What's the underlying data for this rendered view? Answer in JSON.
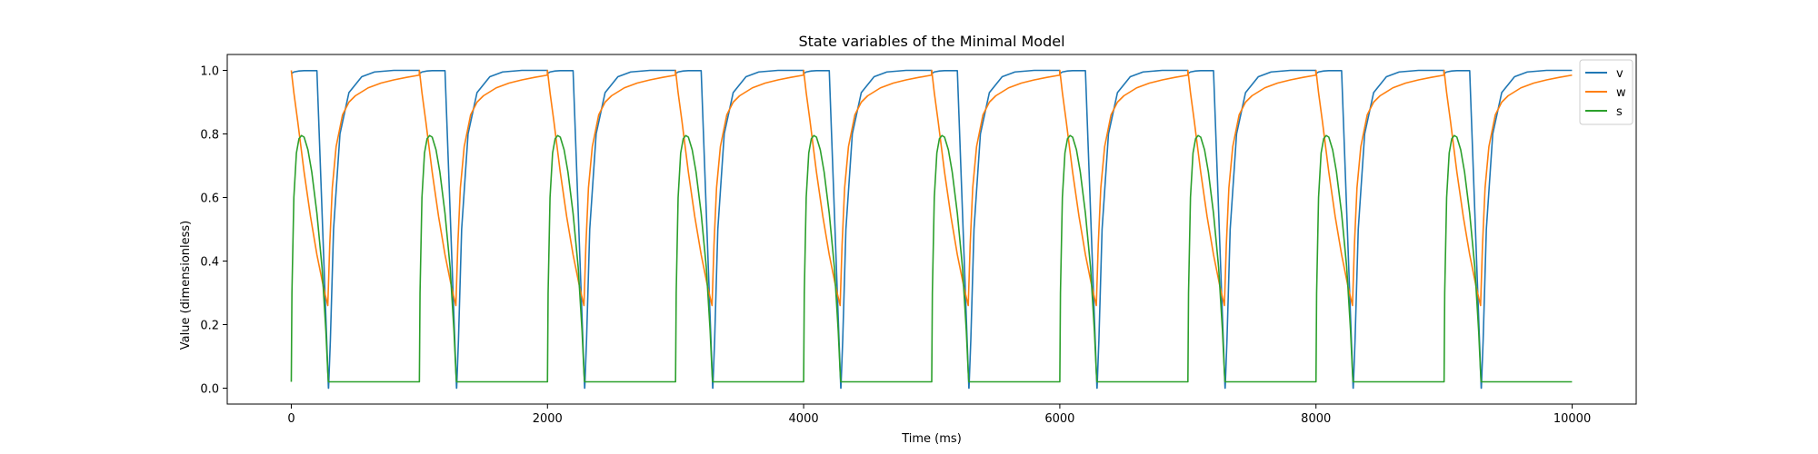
{
  "chart_data": {
    "type": "line",
    "title": "State variables of the Minimal Model",
    "xlabel": "Time (ms)",
    "ylabel": "Value (dimensionless)",
    "xlim": [
      -500,
      10500
    ],
    "ylim": [
      -0.05,
      1.05
    ],
    "x_ticks": [
      0,
      2000,
      4000,
      6000,
      8000,
      10000
    ],
    "x_tick_labels": [
      "0",
      "2000",
      "4000",
      "6000",
      "8000",
      "10000"
    ],
    "y_ticks": [
      0.0,
      0.2,
      0.4,
      0.6,
      0.8,
      1.0
    ],
    "y_tick_labels": [
      "0.0",
      "0.2",
      "0.4",
      "0.6",
      "0.8",
      "1.0"
    ],
    "grid": false,
    "legend_position": "top-right",
    "cycle_period_ms": 1000,
    "series": [
      {
        "name": "v",
        "color": "#1f77b4",
        "cycle_x": [
          0,
          1,
          20,
          60,
          100,
          200,
          290,
          291,
          305,
          330,
          380,
          450,
          550,
          650,
          800,
          999
        ],
        "cycle_y": [
          0.99,
          0.99,
          0.995,
          0.998,
          0.999,
          0.999,
          0.0,
          0.0,
          0.15,
          0.5,
          0.8,
          0.93,
          0.98,
          0.995,
          1.0,
          1.0
        ]
      },
      {
        "name": "w",
        "color": "#ff7f0e",
        "cycle_x": [
          0,
          20,
          50,
          100,
          150,
          200,
          250,
          285,
          300,
          320,
          350,
          400,
          450,
          500,
          600,
          700,
          800,
          900,
          999
        ],
        "cycle_y": [
          1.0,
          0.93,
          0.84,
          0.68,
          0.54,
          0.42,
          0.32,
          0.26,
          0.45,
          0.63,
          0.76,
          0.86,
          0.9,
          0.92,
          0.945,
          0.96,
          0.97,
          0.978,
          0.985
        ]
      },
      {
        "name": "s",
        "color": "#2ca02c",
        "cycle_x": [
          0,
          5,
          20,
          40,
          60,
          80,
          100,
          130,
          160,
          200,
          240,
          270,
          285,
          290,
          500,
          999
        ],
        "cycle_y": [
          0.02,
          0.3,
          0.6,
          0.74,
          0.785,
          0.795,
          0.79,
          0.75,
          0.68,
          0.55,
          0.38,
          0.18,
          0.05,
          0.02,
          0.02,
          0.02
        ]
      }
    ]
  }
}
